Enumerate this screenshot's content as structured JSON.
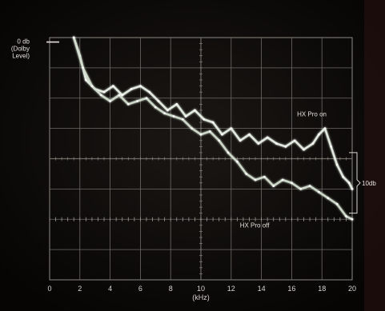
{
  "chart_data": {
    "type": "line",
    "title": "",
    "xlabel": "(kHz)",
    "xlim": [
      0,
      20
    ],
    "x_ticks": [
      "0",
      "2",
      "4",
      "6",
      "8",
      "10",
      "12",
      "14",
      "16",
      "18",
      "20"
    ],
    "ylim": [
      -40,
      0
    ],
    "grid": true,
    "reference_level": {
      "label_lines": [
        "0 db",
        "(Dolby",
        "Level)"
      ],
      "y": -1
    },
    "scale_bracket": {
      "label": "10db",
      "y_top": -19,
      "y_bottom": -29
    },
    "series": [
      {
        "name": "HX Pro on",
        "label_at": {
          "x": 17.2,
          "y": -13.5
        },
        "x": [
          1.6,
          2.0,
          2.4,
          3.0,
          3.6,
          4.2,
          4.8,
          5.4,
          6.0,
          6.6,
          7.2,
          7.8,
          8.4,
          9.0,
          9.6,
          10.2,
          10.8,
          11.4,
          12.0,
          12.6,
          13.2,
          13.8,
          14.4,
          15.0,
          15.6,
          16.2,
          16.8,
          17.4,
          17.8,
          18.2,
          18.6,
          19.0,
          19.4,
          19.8,
          20.0
        ],
        "y": [
          0,
          -3,
          -7,
          -8.5,
          -9,
          -8,
          -9.5,
          -8.5,
          -8,
          -9,
          -10.5,
          -12,
          -11,
          -13,
          -12,
          -13.5,
          -14,
          -16,
          -15,
          -17,
          -16,
          -17.5,
          -16.5,
          -17.5,
          -18,
          -17,
          -18.5,
          -17.5,
          -16,
          -15,
          -18,
          -21,
          -23,
          -24,
          -25
        ]
      },
      {
        "name": "HX Pro off",
        "label_at": {
          "x": 13,
          "y": -29.5
        },
        "x": [
          1.6,
          2.2,
          2.8,
          3.4,
          4.0,
          4.6,
          5.2,
          5.8,
          6.4,
          7.0,
          7.6,
          8.2,
          8.8,
          9.4,
          10.0,
          10.6,
          11.2,
          11.8,
          12.4,
          13.0,
          13.6,
          14.2,
          14.8,
          15.4,
          16.0,
          16.6,
          17.2,
          17.8,
          18.4,
          19.0,
          19.6,
          20.0
        ],
        "y": [
          0,
          -5,
          -8,
          -9.5,
          -10.5,
          -9.5,
          -11,
          -10.5,
          -10,
          -11.5,
          -12.5,
          -13,
          -13.5,
          -15,
          -16,
          -15.5,
          -17,
          -19,
          -20.5,
          -22.5,
          -23.5,
          -23,
          -24.5,
          -23.5,
          -24,
          -25,
          -24.5,
          -25.5,
          -26.5,
          -27.5,
          -29.5,
          -30
        ]
      }
    ]
  }
}
